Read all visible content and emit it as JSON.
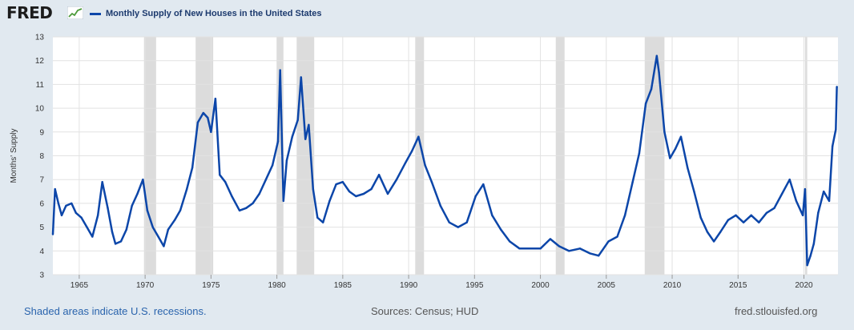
{
  "header": {
    "logo_text": "FRED",
    "legend_label": "Monthly Supply of New Houses in the United States"
  },
  "colors": {
    "series": "#0c46a9",
    "recession": "#dcdcdc",
    "grid": "#e2e2e2",
    "background": "#e1e9f0",
    "plot_bg": "#ffffff",
    "note_link": "#2a64ad"
  },
  "footer": {
    "recession_note": "Shaded areas indicate U.S. recessions.",
    "sources": "Sources: Census; HUD",
    "site": "fred.stlouisfed.org"
  },
  "chart_data": {
    "type": "line",
    "ylabel": "Months' Supply",
    "xlabel": "",
    "ylim": [
      3,
      13
    ],
    "xlim": [
      "1963-01",
      "2022-08"
    ],
    "y_ticks": [
      3,
      4,
      5,
      6,
      7,
      8,
      9,
      10,
      11,
      12,
      13
    ],
    "x_ticks": [
      "1965",
      "1970",
      "1975",
      "1980",
      "1985",
      "1990",
      "1995",
      "2000",
      "2005",
      "2010",
      "2015",
      "2020"
    ],
    "grid": true,
    "recessions": [
      [
        "1969-12",
        "1970-11"
      ],
      [
        "1973-11",
        "1975-03"
      ],
      [
        "1980-01",
        "1980-07"
      ],
      [
        "1981-07",
        "1982-11"
      ],
      [
        "1990-07",
        "1991-03"
      ],
      [
        "2001-03",
        "2001-11"
      ],
      [
        "2007-12",
        "2009-06"
      ],
      [
        "2020-02",
        "2020-04"
      ]
    ],
    "series": [
      {
        "name": "Monthly Supply of New Houses in the United States",
        "x": [
          "1963-01",
          "1963-03",
          "1963-06",
          "1963-09",
          "1964-01",
          "1964-06",
          "1964-10",
          "1965-03",
          "1965-08",
          "1966-01",
          "1966-06",
          "1966-10",
          "1967-03",
          "1967-07",
          "1967-10",
          "1968-03",
          "1968-08",
          "1969-01",
          "1969-06",
          "1969-11",
          "1970-03",
          "1970-08",
          "1971-01",
          "1971-06",
          "1971-10",
          "1972-04",
          "1972-09",
          "1973-03",
          "1973-08",
          "1974-01",
          "1974-06",
          "1974-10",
          "1975-01",
          "1975-05",
          "1975-09",
          "1976-02",
          "1976-08",
          "1977-03",
          "1977-09",
          "1978-03",
          "1978-09",
          "1979-03",
          "1979-09",
          "1980-02",
          "1980-04",
          "1980-07",
          "1980-10",
          "1981-03",
          "1981-08",
          "1981-11",
          "1982-03",
          "1982-06",
          "1982-10",
          "1983-02",
          "1983-07",
          "1984-01",
          "1984-07",
          "1985-01",
          "1985-07",
          "1986-01",
          "1986-08",
          "1987-03",
          "1987-10",
          "1988-06",
          "1989-02",
          "1989-10",
          "1990-04",
          "1990-10",
          "1991-04",
          "1991-10",
          "1992-06",
          "1993-02",
          "1993-10",
          "1994-06",
          "1995-02",
          "1995-09",
          "1996-05",
          "1997-01",
          "1997-09",
          "1998-06",
          "1999-03",
          "2000-01",
          "2000-10",
          "2001-06",
          "2002-03",
          "2003-01",
          "2003-10",
          "2004-06",
          "2005-03",
          "2005-11",
          "2006-06",
          "2007-01",
          "2007-07",
          "2008-01",
          "2008-06",
          "2008-11",
          "2009-01",
          "2009-06",
          "2009-11",
          "2010-04",
          "2010-09",
          "2011-03",
          "2011-09",
          "2012-03",
          "2012-09",
          "2013-03",
          "2013-09",
          "2014-04",
          "2014-11",
          "2015-06",
          "2016-01",
          "2016-08",
          "2017-03",
          "2017-10",
          "2018-05",
          "2018-12",
          "2019-06",
          "2019-12",
          "2020-02",
          "2020-04",
          "2020-07",
          "2020-10",
          "2021-02",
          "2021-07",
          "2021-12",
          "2022-03",
          "2022-06",
          "2022-07"
        ],
        "values": [
          4.7,
          6.6,
          6.0,
          5.5,
          5.9,
          6.0,
          5.6,
          5.4,
          5.0,
          4.6,
          5.5,
          6.9,
          5.8,
          4.8,
          4.3,
          4.4,
          4.9,
          5.9,
          6.4,
          7.0,
          5.7,
          5.0,
          4.6,
          4.2,
          4.9,
          5.3,
          5.7,
          6.6,
          7.5,
          9.4,
          9.8,
          9.6,
          9.0,
          10.4,
          7.2,
          6.9,
          6.3,
          5.7,
          5.8,
          6.0,
          6.4,
          7.0,
          7.6,
          8.6,
          11.6,
          6.1,
          7.8,
          8.8,
          9.5,
          11.3,
          8.7,
          9.3,
          6.6,
          5.4,
          5.2,
          6.1,
          6.8,
          6.9,
          6.5,
          6.3,
          6.4,
          6.6,
          7.2,
          6.4,
          7.0,
          7.7,
          8.2,
          8.8,
          7.6,
          6.9,
          5.9,
          5.2,
          5.0,
          5.2,
          6.3,
          6.8,
          5.5,
          4.9,
          4.4,
          4.1,
          4.1,
          4.1,
          4.5,
          4.2,
          4.0,
          4.1,
          3.9,
          3.8,
          4.4,
          4.6,
          5.5,
          6.9,
          8.1,
          10.2,
          10.8,
          12.2,
          11.5,
          9.0,
          7.9,
          8.3,
          8.8,
          7.5,
          6.5,
          5.4,
          4.8,
          4.4,
          4.8,
          5.3,
          5.5,
          5.2,
          5.5,
          5.2,
          5.6,
          5.8,
          6.4,
          7.0,
          6.1,
          5.5,
          6.6,
          3.4,
          3.8,
          4.3,
          5.6,
          6.5,
          6.1,
          8.4,
          9.1,
          10.9
        ]
      }
    ]
  }
}
